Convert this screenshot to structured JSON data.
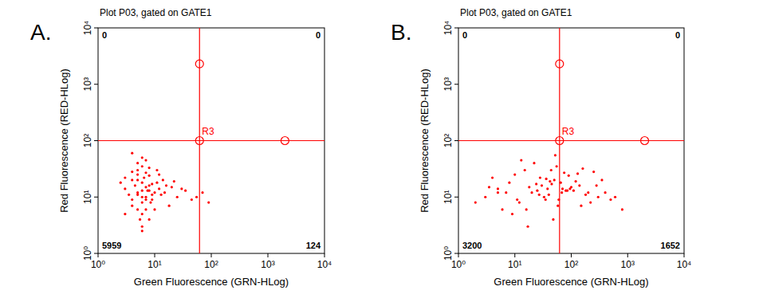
{
  "chart_data": [
    {
      "type": "scatter",
      "panel_label": "A.",
      "title": "Plot P03, gated on GATE1",
      "x_label": "Green Fluorescence (GRN-HLog)",
      "y_label": "Red Fluorescence (RED-HLog)",
      "log": true,
      "color": "#ff0000",
      "marker": "dot",
      "xlim": [
        1,
        10000
      ],
      "ylim": [
        1,
        10000
      ],
      "xticks": [
        {
          "value": 1,
          "label": "10⁰"
        },
        {
          "value": 10,
          "label": "10¹"
        },
        {
          "value": 100,
          "label": "10²"
        },
        {
          "value": 1000,
          "label": "10³"
        },
        {
          "value": 10000,
          "label": "10⁴"
        }
      ],
      "yticks": [
        {
          "value": 1,
          "label": "10⁰"
        },
        {
          "value": 10,
          "label": "10¹"
        },
        {
          "value": 100,
          "label": "10²"
        },
        {
          "value": 1000,
          "label": "10³"
        },
        {
          "value": 10000,
          "label": "10⁴"
        }
      ],
      "gate": {
        "label": "R3",
        "x": 62,
        "y": 100
      },
      "gate_handles": [
        [
          62,
          2300
        ],
        [
          62,
          100
        ],
        [
          2000,
          100
        ]
      ],
      "quadrant_counts": {
        "upper_left": 0,
        "upper_right": 0,
        "lower_left": 5959,
        "lower_right": 124
      },
      "x": [
        5,
        6,
        7,
        4,
        8,
        5,
        6,
        9,
        3,
        7,
        6,
        5,
        10,
        4,
        8,
        6,
        7,
        5,
        12,
        3.5,
        6.5,
        9,
        4.5,
        7.5,
        5.5,
        11,
        8.5,
        6,
        4,
        7,
        15,
        20,
        25,
        30,
        45,
        70,
        90,
        3,
        2.5,
        14,
        18,
        5,
        6,
        8,
        7,
        9,
        4,
        5,
        6,
        10,
        12,
        16,
        6,
        7,
        3,
        8,
        5,
        22,
        35,
        55,
        4,
        6,
        8,
        11,
        13
      ],
      "values": [
        12,
        10,
        15,
        9,
        13,
        20,
        8,
        11,
        14,
        6,
        18,
        25,
        12,
        7,
        16,
        5,
        10,
        30,
        14,
        11,
        22,
        9,
        16,
        13,
        4,
        18,
        8,
        35,
        20,
        27,
        12,
        15,
        10,
        14,
        9,
        12,
        8,
        5,
        18,
        20,
        7,
        40,
        3,
        24,
        45,
        17,
        28,
        11,
        13,
        6,
        25,
        16,
        50,
        9,
        22,
        33,
        6,
        19,
        13,
        10,
        60,
        2.5,
        4,
        30,
        11
      ]
    },
    {
      "type": "scatter",
      "panel_label": "B.",
      "title": "Plot P03, gated on GATE1",
      "x_label": "Green Fluorescence (GRN-HLog)",
      "y_label": "Red Fluorescence (RED-HLog)",
      "log": true,
      "color": "#ff0000",
      "marker": "dot",
      "xlim": [
        1,
        10000
      ],
      "ylim": [
        1,
        10000
      ],
      "xticks": [
        {
          "value": 1,
          "label": "10⁰"
        },
        {
          "value": 10,
          "label": "10¹"
        },
        {
          "value": 100,
          "label": "10²"
        },
        {
          "value": 1000,
          "label": "10³"
        },
        {
          "value": 10000,
          "label": "10⁴"
        }
      ],
      "yticks": [
        {
          "value": 1,
          "label": "10⁰"
        },
        {
          "value": 10,
          "label": "10¹"
        },
        {
          "value": 100,
          "label": "10²"
        },
        {
          "value": 1000,
          "label": "10³"
        },
        {
          "value": 10000,
          "label": "10⁴"
        }
      ],
      "gate": {
        "label": "R3",
        "x": 62,
        "y": 100
      },
      "gate_handles": [
        [
          62,
          2300
        ],
        [
          62,
          100
        ],
        [
          2000,
          100
        ]
      ],
      "quadrant_counts": {
        "upper_left": 0,
        "upper_right": 0,
        "lower_left": 3200,
        "lower_right": 1652
      },
      "x": [
        3,
        5,
        8,
        12,
        20,
        30,
        40,
        50,
        60,
        80,
        100,
        150,
        200,
        300,
        500,
        800,
        4,
        6,
        10,
        15,
        25,
        35,
        45,
        55,
        70,
        90,
        120,
        180,
        250,
        400,
        2,
        7,
        9,
        18,
        22,
        28,
        33,
        38,
        48,
        65,
        75,
        110,
        140,
        220,
        350,
        600,
        3.5,
        13,
        17,
        27,
        42,
        58,
        85,
        130,
        160,
        5,
        11,
        24,
        36,
        52,
        95,
        280,
        16,
        44,
        68
      ],
      "values": [
        10,
        14,
        18,
        8,
        12,
        16,
        11,
        20,
        9,
        13,
        15,
        7,
        12,
        10,
        9,
        6,
        22,
        6,
        25,
        30,
        13,
        9,
        17,
        35,
        14,
        24,
        19,
        11,
        28,
        12,
        8,
        12,
        5,
        15,
        40,
        22,
        10,
        14,
        4,
        18,
        27,
        13,
        16,
        8,
        20,
        10,
        15,
        45,
        3,
        11,
        19,
        7,
        13,
        26,
        32,
        12,
        9,
        17,
        21,
        55,
        14,
        16,
        6,
        30,
        12
      ]
    }
  ]
}
